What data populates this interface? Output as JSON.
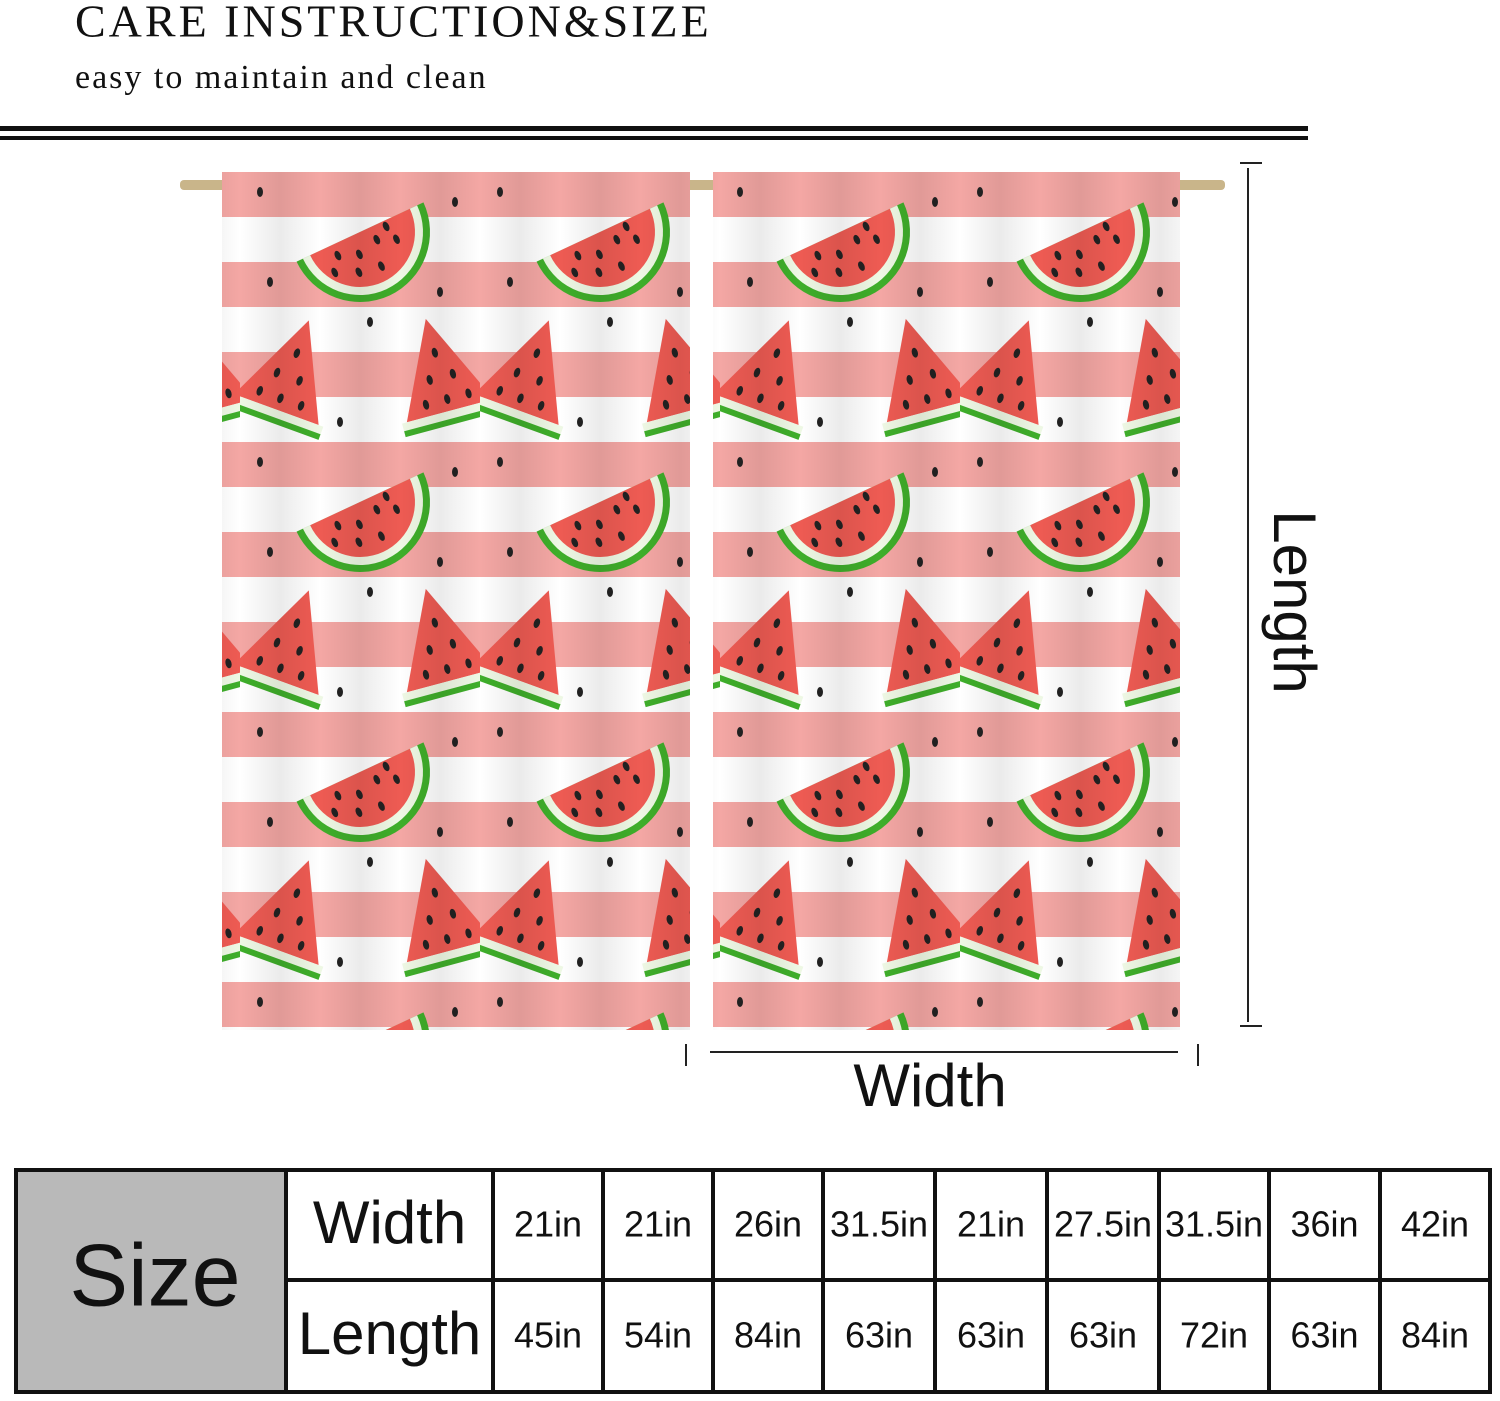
{
  "header": {
    "title": "CARE INSTRUCTION&SIZE",
    "subtitle": "easy to maintain and clean"
  },
  "diagram": {
    "width_label": "Width",
    "length_label": "Length"
  },
  "table": {
    "header": "Size",
    "rows": [
      {
        "label": "Width",
        "cells": [
          "21in",
          "21in",
          "26in",
          "31.5in",
          "21in",
          "27.5in",
          "31.5in",
          "36in",
          "42in"
        ]
      },
      {
        "label": "Length",
        "cells": [
          "45in",
          "54in",
          "84in",
          "63in",
          "63in",
          "63in",
          "72in",
          "63in",
          "84in"
        ]
      }
    ]
  }
}
